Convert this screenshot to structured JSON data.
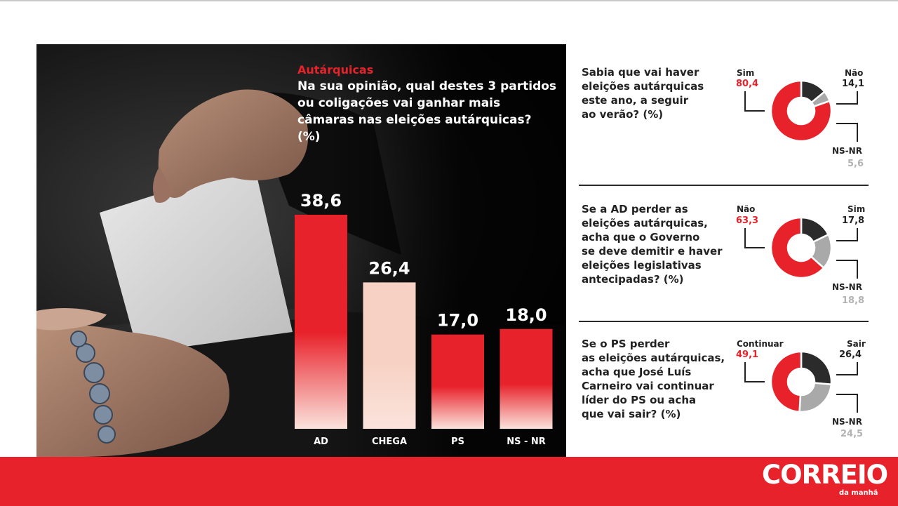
{
  "main_chart": {
    "kicker": "Autárquicas",
    "question": "Na sua opinião, qual destes 3 partidos ou coligações vai ganhar mais câmaras nas eleições autárquicas? (%)"
  },
  "chart_data": [
    {
      "type": "bar",
      "title": "Na sua opinião, qual destes 3 partidos ou coligações vai ganhar mais câmaras nas eleições autárquicas? (%)",
      "categories": [
        "AD",
        "CHEGA",
        "PS",
        "NS - NR"
      ],
      "values": [
        38.6,
        26.4,
        17.0,
        18.0
      ],
      "value_labels": [
        "38,6",
        "26,4",
        "17,0",
        "18,0"
      ],
      "colors": [
        "#e8222b",
        "#f7d2c4",
        "#e8222b",
        "#e8222b"
      ],
      "ylim": [
        0,
        40
      ]
    },
    {
      "type": "pie",
      "title": "Sabia que vai haver eleições autárquicas este ano, a seguir ao verão? (%)",
      "categories": [
        "Sim",
        "Não",
        "NS-NR"
      ],
      "values": [
        80.4,
        14.1,
        5.6
      ],
      "value_labels": [
        "80,4",
        "14,1",
        "5,6"
      ],
      "colors": [
        "#e8222b",
        "#2b2b2b",
        "#a9a9a9"
      ]
    },
    {
      "type": "pie",
      "title": "Se a AD perder as eleições autárquicas, acha que o Governo se deve demitir e haver eleições legislativas antecipadas? (%)",
      "categories": [
        "Não",
        "Sim",
        "NS-NR"
      ],
      "values": [
        63.3,
        17.8,
        18.8
      ],
      "value_labels": [
        "63,3",
        "17,8",
        "18,8"
      ],
      "colors": [
        "#e8222b",
        "#2b2b2b",
        "#a9a9a9"
      ]
    },
    {
      "type": "pie",
      "title": "Se o PS perder as eleições autárquicas, acha que José Luís Carneiro vai continuar líder do PS ou acha que vai sair? (%)",
      "categories": [
        "Continuar",
        "Sair",
        "NS-NR"
      ],
      "values": [
        49.1,
        26.4,
        24.5
      ],
      "value_labels": [
        "49,1",
        "26,4",
        "24,5"
      ],
      "colors": [
        "#e8222b",
        "#2b2b2b",
        "#a9a9a9"
      ]
    }
  ],
  "side_questions": [
    {
      "lines": [
        "Sabia que vai haver",
        "eleições autárquicas",
        "este ano, a seguir",
        "ao verão? (%)"
      ],
      "a_label": "Sim",
      "a_value": "80,4",
      "b_label": "Não",
      "b_value": "14,1",
      "c_label": "NS-NR",
      "c_value": "5,6"
    },
    {
      "lines": [
        "Se a AD perder as",
        "eleições autárquicas,",
        "acha que o Governo",
        "se deve demitir e haver",
        "eleições legislativas",
        "antecipadas? (%)"
      ],
      "a_label": "Não",
      "a_value": "63,3",
      "b_label": "Sim",
      "b_value": "17,8",
      "c_label": "NS-NR",
      "c_value": "18,8"
    },
    {
      "lines": [
        "Se o PS perder",
        "as eleições autárquicas,",
        "acha que José Luís",
        "Carneiro vai continuar",
        "líder do PS ou acha",
        "que vai sair? (%)"
      ],
      "a_label": "Continuar",
      "a_value": "49,1",
      "b_label": "Sair",
      "b_value": "26,4",
      "c_label": "NS-NR",
      "c_value": "24,5"
    }
  ],
  "footer": {
    "logo": "CORREIO",
    "logo_sub": "da manhã",
    "color": "#e8222b"
  }
}
